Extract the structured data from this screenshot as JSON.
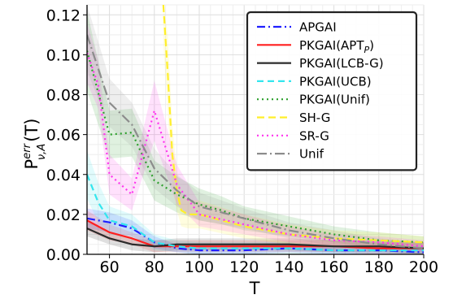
{
  "chart_data": {
    "type": "line",
    "title": "",
    "xlabel": "T",
    "ylabel_main": "P",
    "ylabel_sup": "err",
    "ylabel_sub": "ν,A",
    "ylabel_arg": "(T)",
    "xlim": [
      50,
      200
    ],
    "ylim": [
      0.0,
      0.125
    ],
    "xticks": [
      "60",
      "80",
      "100",
      "120",
      "140",
      "160",
      "180",
      "200"
    ],
    "yticks": [
      "0.00",
      "0.02",
      "0.04",
      "0.06",
      "0.08",
      "0.10",
      "0.12"
    ],
    "grid": true,
    "legend_position": "top-right",
    "series": [
      {
        "name": "APGAI",
        "color": "#1f1fff",
        "dash": "10,4,2,4",
        "x": [
          50,
          60,
          70,
          80,
          90,
          100,
          120,
          140,
          160,
          180,
          200
        ],
        "y": [
          0.018,
          0.016,
          0.013,
          0.006,
          0.003,
          0.002,
          0.002,
          0.003,
          0.002,
          0.002,
          0.001
        ],
        "band": [
          0.005,
          0.005,
          0.004,
          0.003,
          0.002,
          0.002,
          0.002,
          0.002,
          0.002,
          0.002,
          0.002
        ]
      },
      {
        "name": "PKGAI(APT",
        "name_sub": "P",
        "name_suffix": ")",
        "color": "#ff1f1f",
        "dash": "",
        "x": [
          50,
          60,
          70,
          80,
          90,
          100,
          120,
          140,
          160,
          180,
          200
        ],
        "y": [
          0.017,
          0.011,
          0.008,
          0.004,
          0.004,
          0.004,
          0.004,
          0.004,
          0.004,
          0.003,
          0.003
        ],
        "band": [
          0.005,
          0.004,
          0.003,
          0.003,
          0.003,
          0.003,
          0.003,
          0.003,
          0.003,
          0.003,
          0.003
        ]
      },
      {
        "name": "PKGAI(LCB-G)",
        "color": "#2b2b2b",
        "dash": "",
        "x": [
          50,
          60,
          70,
          80,
          90,
          100,
          120,
          140,
          160,
          180,
          200
        ],
        "y": [
          0.013,
          0.008,
          0.005,
          0.004,
          0.005,
          0.005,
          0.005,
          0.005,
          0.004,
          0.004,
          0.003
        ],
        "band": [
          0.004,
          0.003,
          0.003,
          0.003,
          0.003,
          0.003,
          0.003,
          0.003,
          0.003,
          0.003,
          0.003
        ]
      },
      {
        "name": "PKGAI(UCB)",
        "color": "#33e6ee",
        "dash": "8,5",
        "x": [
          50,
          55,
          60,
          70,
          80,
          90,
          100,
          120,
          140,
          160,
          180,
          200
        ],
        "y": [
          0.04,
          0.026,
          0.017,
          0.014,
          0.006,
          0.004,
          0.003,
          0.003,
          0.003,
          0.002,
          0.002,
          0.002
        ],
        "band": [
          0.012,
          0.01,
          0.007,
          0.006,
          0.004,
          0.003,
          0.003,
          0.003,
          0.003,
          0.002,
          0.002,
          0.002
        ]
      },
      {
        "name": "PKGAI(Unif)",
        "color": "#2ca02c",
        "dash": "2,4",
        "x": [
          50,
          60,
          70,
          80,
          90,
          100,
          110,
          120,
          140,
          160,
          180,
          200
        ],
        "y": [
          0.102,
          0.06,
          0.061,
          0.037,
          0.03,
          0.025,
          0.022,
          0.018,
          0.014,
          0.01,
          0.007,
          0.006
        ],
        "band": [
          0.02,
          0.012,
          0.012,
          0.01,
          0.009,
          0.008,
          0.007,
          0.006,
          0.005,
          0.004,
          0.004,
          0.003
        ]
      },
      {
        "name": "SH-G",
        "color": "#ffef2a",
        "dash": "9,5",
        "x": [
          84,
          86,
          88,
          90,
          92,
          95,
          100,
          120,
          140,
          160,
          180,
          200
        ],
        "y": [
          0.125,
          0.09,
          0.05,
          0.032,
          0.022,
          0.02,
          0.02,
          0.014,
          0.01,
          0.008,
          0.007,
          0.006
        ],
        "band": [
          0.02,
          0.02,
          0.015,
          0.01,
          0.008,
          0.007,
          0.007,
          0.006,
          0.005,
          0.004,
          0.004,
          0.003
        ]
      },
      {
        "name": "SR-G",
        "color": "#ff33ee",
        "dash": "2,4",
        "x": [
          50,
          55,
          60,
          70,
          80,
          90,
          100,
          120,
          140,
          160,
          180,
          200
        ],
        "y": [
          0.101,
          0.085,
          0.04,
          0.03,
          0.072,
          0.035,
          0.02,
          0.015,
          0.01,
          0.007,
          0.006,
          0.004
        ],
        "band": [
          0.015,
          0.012,
          0.01,
          0.008,
          0.015,
          0.01,
          0.006,
          0.005,
          0.004,
          0.003,
          0.003,
          0.003
        ]
      },
      {
        "name": "Unif",
        "color": "#8c8c8c",
        "dash": "12,4,2,4",
        "x": [
          50,
          60,
          70,
          80,
          90,
          100,
          110,
          120,
          140,
          160,
          180,
          200
        ],
        "y": [
          0.11,
          0.076,
          0.065,
          0.043,
          0.032,
          0.024,
          0.021,
          0.018,
          0.012,
          0.008,
          0.005,
          0.003
        ],
        "band": [
          0.018,
          0.012,
          0.011,
          0.01,
          0.008,
          0.007,
          0.006,
          0.005,
          0.004,
          0.004,
          0.003,
          0.003
        ]
      }
    ]
  }
}
